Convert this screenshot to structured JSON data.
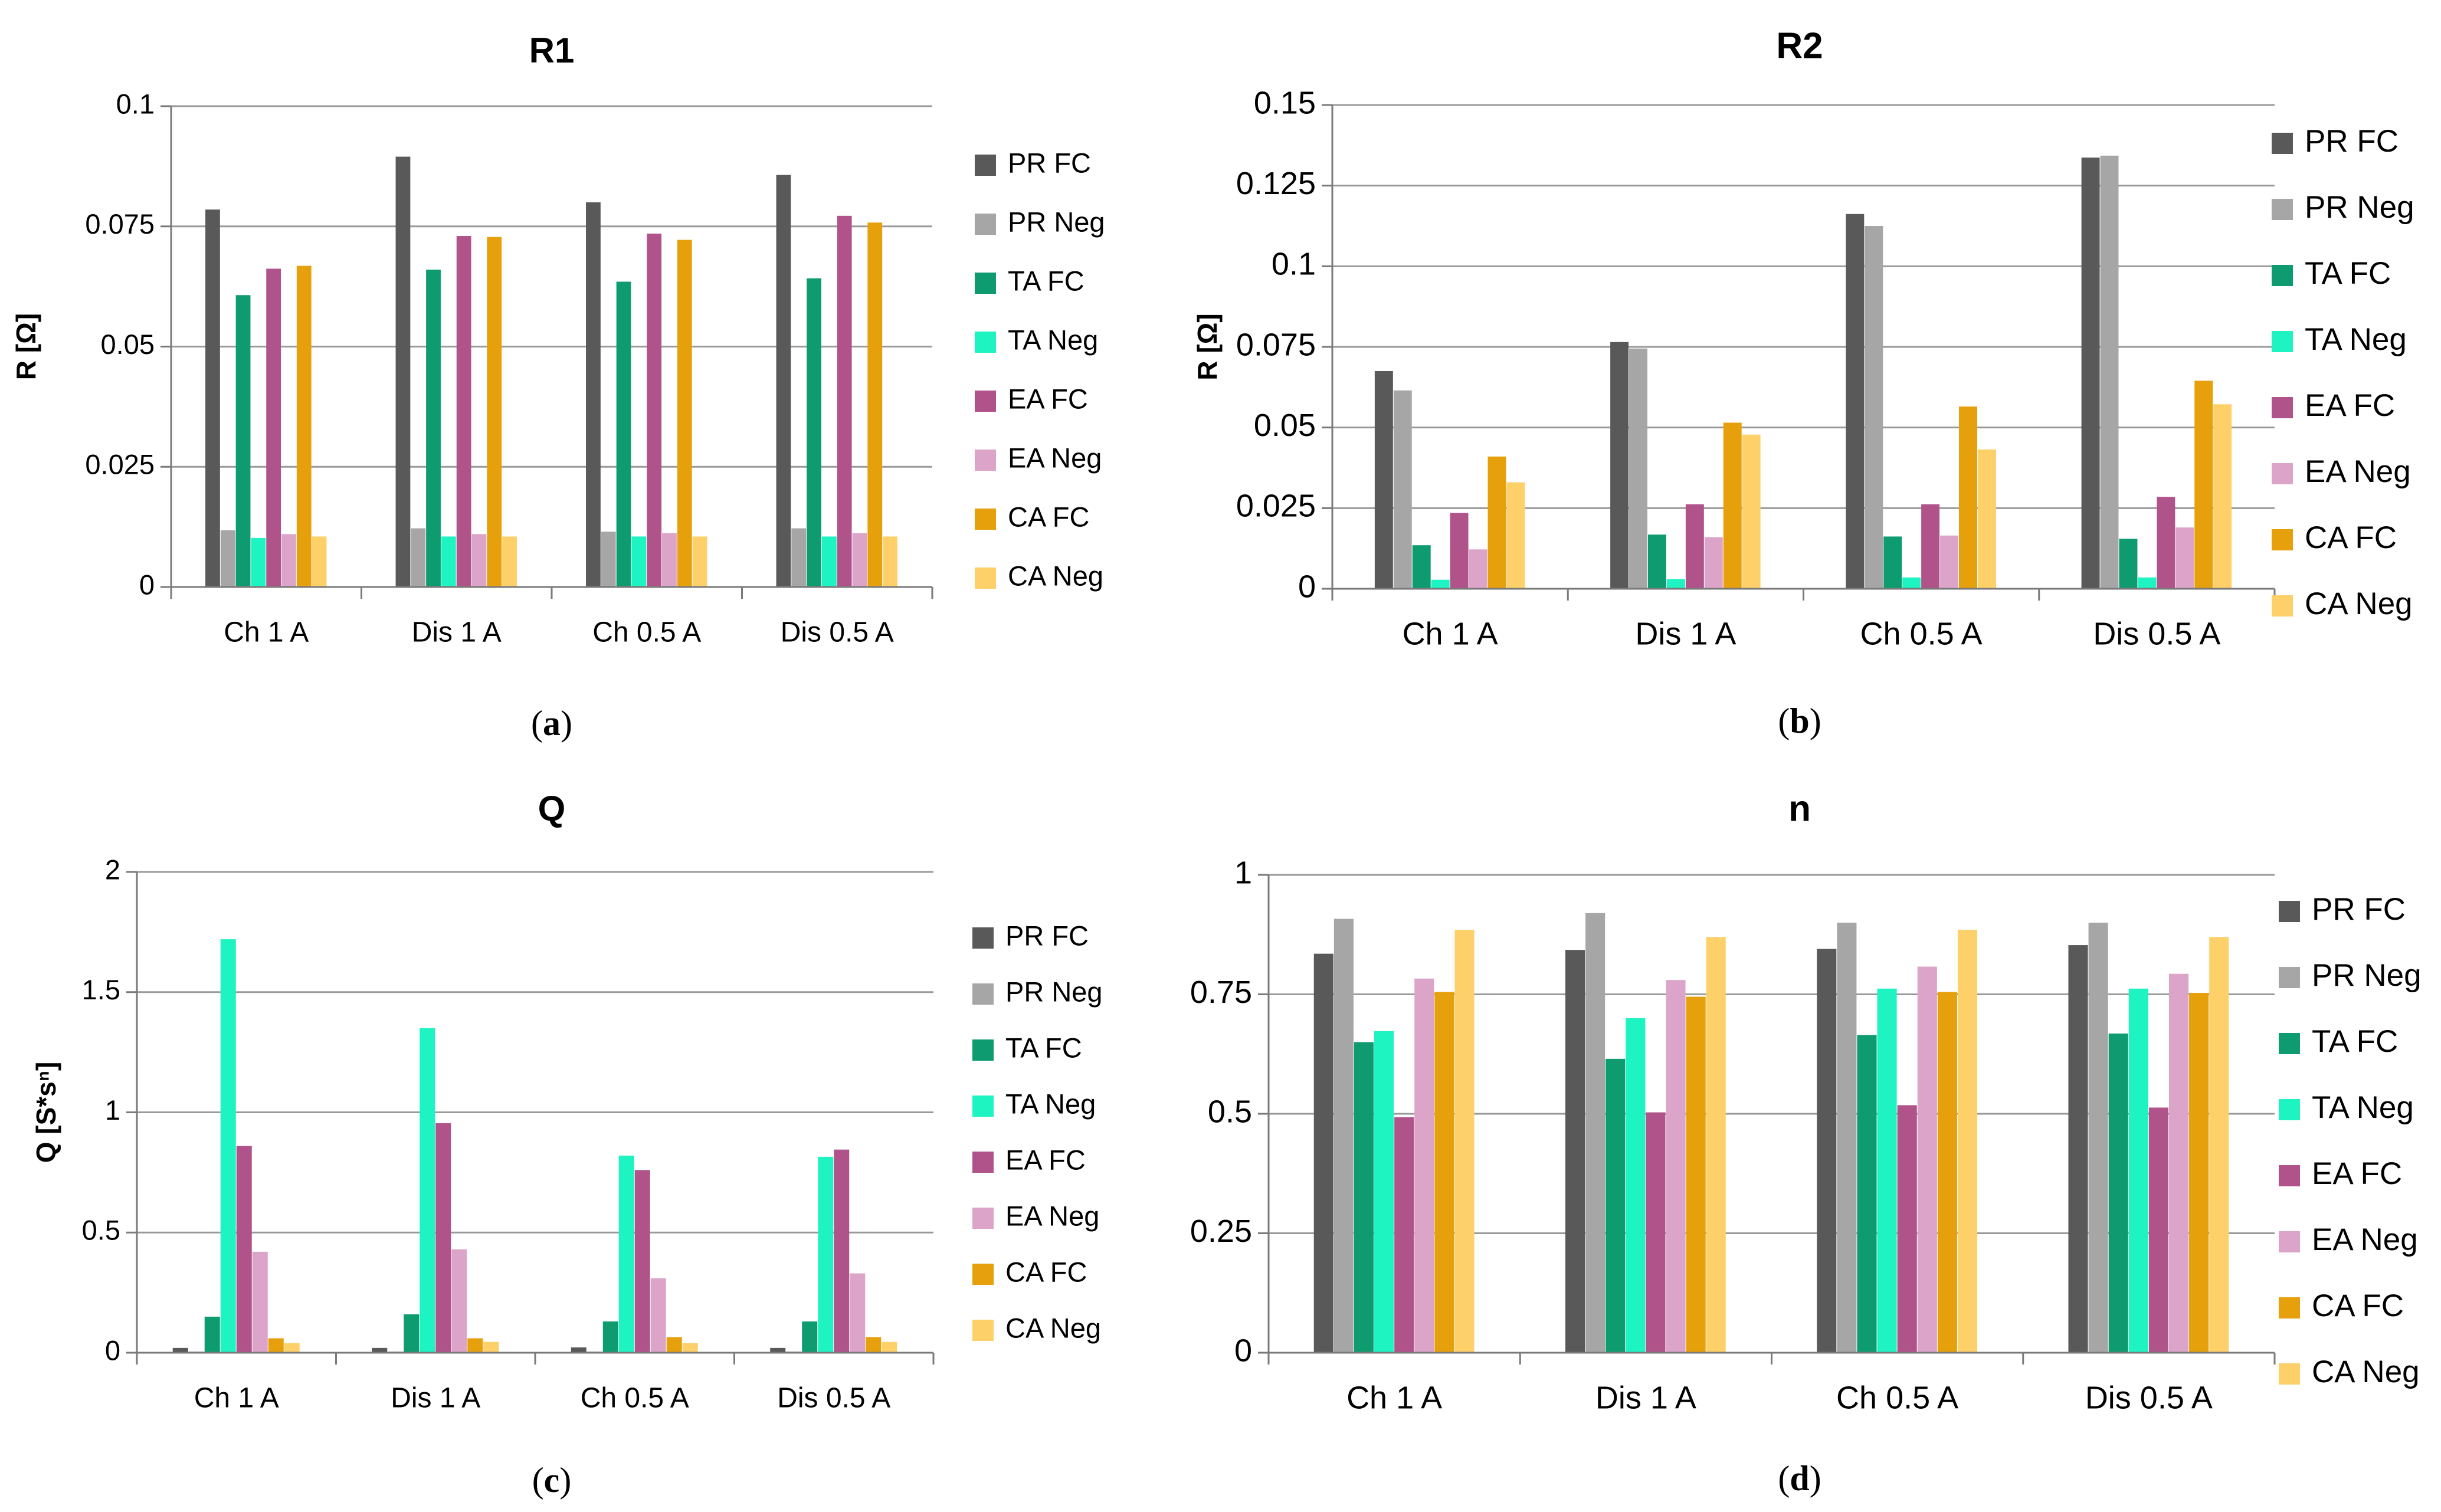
{
  "series_names": [
    "PR FC",
    "PR Neg",
    "TA FC",
    "TA Neg",
    "EA FC",
    "EA Neg",
    "CA FC",
    "CA Neg"
  ],
  "colors": [
    "#595959",
    "#a6a6a6",
    "#0e9b6f",
    "#1ef4c2",
    "#b1538b",
    "#dca4c8",
    "#e6a00c",
    "#fdd06a"
  ],
  "chart_data": [
    {
      "type": "bar",
      "panel": "a",
      "caption": "(a)",
      "title": "R1",
      "xlabel": "",
      "ylabel": "R [Ω]",
      "categories": [
        "Ch 1 A",
        "Dis 1 A",
        "Ch 0.5 A",
        "Dis 0.5 A"
      ],
      "ylim": [
        0,
        0.1
      ],
      "yticks": [
        0,
        0.025,
        0.05,
        0.075,
        0.1
      ],
      "ytick_labels": [
        "0",
        "0.025",
        "0.05",
        "0.075",
        "0.1"
      ],
      "legend_position": "right",
      "series": [
        {
          "name": "PR FC",
          "values": [
            0.0785,
            0.0895,
            0.08,
            0.0857
          ]
        },
        {
          "name": "PR Neg",
          "values": [
            0.0118,
            0.0122,
            0.0115,
            0.0122
          ]
        },
        {
          "name": "TA FC",
          "values": [
            0.0607,
            0.066,
            0.0635,
            0.0642
          ]
        },
        {
          "name": "TA Neg",
          "values": [
            0.0102,
            0.0105,
            0.0105,
            0.0105
          ]
        },
        {
          "name": "EA FC",
          "values": [
            0.0662,
            0.073,
            0.0735,
            0.0772
          ]
        },
        {
          "name": "EA Neg",
          "values": [
            0.011,
            0.011,
            0.0112,
            0.0112
          ]
        },
        {
          "name": "CA FC",
          "values": [
            0.0668,
            0.0728,
            0.0722,
            0.0758
          ]
        },
        {
          "name": "CA Neg",
          "values": [
            0.0105,
            0.0105,
            0.0105,
            0.0105
          ]
        }
      ]
    },
    {
      "type": "bar",
      "panel": "b",
      "caption": "(b)",
      "title": "R2",
      "xlabel": "",
      "ylabel": "R [Ω]",
      "categories": [
        "Ch 1 A",
        "Dis 1 A",
        "Ch 0.5 A",
        "Dis 0.5 A"
      ],
      "ylim": [
        0,
        0.15
      ],
      "yticks": [
        0,
        0.025,
        0.05,
        0.075,
        0.1,
        0.125,
        0.15
      ],
      "ytick_labels": [
        "0",
        "0.025",
        "0.05",
        "0.075",
        "0.1",
        "0.125",
        "0.15"
      ],
      "legend_position": "right",
      "series": [
        {
          "name": "PR FC",
          "values": [
            0.0675,
            0.0765,
            0.1162,
            0.1337
          ]
        },
        {
          "name": "PR Neg",
          "values": [
            0.0615,
            0.0745,
            0.1125,
            0.1343
          ]
        },
        {
          "name": "TA FC",
          "values": [
            0.0135,
            0.0168,
            0.0162,
            0.0155
          ]
        },
        {
          "name": "TA Neg",
          "values": [
            0.0028,
            0.003,
            0.0035,
            0.0035
          ]
        },
        {
          "name": "EA FC",
          "values": [
            0.0235,
            0.0262,
            0.0262,
            0.0285
          ]
        },
        {
          "name": "EA Neg",
          "values": [
            0.0122,
            0.016,
            0.0165,
            0.019
          ]
        },
        {
          "name": "CA FC",
          "values": [
            0.041,
            0.0515,
            0.0565,
            0.0645
          ]
        },
        {
          "name": "CA Neg",
          "values": [
            0.033,
            0.0478,
            0.0432,
            0.0572
          ]
        }
      ]
    },
    {
      "type": "bar",
      "panel": "c",
      "caption": "(c)",
      "title": "Q",
      "xlabel": "",
      "ylabel": "Q [S*sⁿ]",
      "categories": [
        "Ch 1 A",
        "Dis 1 A",
        "Ch 0.5 A",
        "Dis 0.5 A"
      ],
      "ylim": [
        0,
        2
      ],
      "yticks": [
        0,
        0.5,
        1,
        1.5,
        2
      ],
      "ytick_labels": [
        "0",
        "0.5",
        "1",
        "1.5",
        "2"
      ],
      "legend_position": "right",
      "series": [
        {
          "name": "PR FC",
          "values": [
            0.02,
            0.02,
            0.022,
            0.02
          ]
        },
        {
          "name": "PR Neg",
          "values": [
            0.005,
            0.005,
            0.005,
            0.005
          ]
        },
        {
          "name": "TA FC",
          "values": [
            0.15,
            0.16,
            0.13,
            0.13
          ]
        },
        {
          "name": "TA Neg",
          "values": [
            1.72,
            1.35,
            0.82,
            0.815
          ]
        },
        {
          "name": "EA FC",
          "values": [
            0.86,
            0.955,
            0.76,
            0.845
          ]
        },
        {
          "name": "EA Neg",
          "values": [
            0.42,
            0.43,
            0.31,
            0.33
          ]
        },
        {
          "name": "CA FC",
          "values": [
            0.06,
            0.06,
            0.065,
            0.065
          ]
        },
        {
          "name": "CA Neg",
          "values": [
            0.04,
            0.045,
            0.04,
            0.045
          ]
        }
      ]
    },
    {
      "type": "bar",
      "panel": "d",
      "caption": "(d)",
      "title": "n",
      "xlabel": "",
      "ylabel": "",
      "categories": [
        "Ch 1 A",
        "Dis 1 A",
        "Ch 0.5 A",
        "Dis 0.5 A"
      ],
      "ylim": [
        0,
        1
      ],
      "yticks": [
        0,
        0.25,
        0.5,
        0.75,
        1
      ],
      "ytick_labels": [
        "0",
        "0.25",
        "0.5",
        "0.75",
        "1"
      ],
      "legend_position": "right",
      "series": [
        {
          "name": "PR FC",
          "values": [
            0.835,
            0.843,
            0.845,
            0.853
          ]
        },
        {
          "name": "PR Neg",
          "values": [
            0.908,
            0.92,
            0.9,
            0.9
          ]
        },
        {
          "name": "TA FC",
          "values": [
            0.65,
            0.615,
            0.665,
            0.668
          ]
        },
        {
          "name": "TA Neg",
          "values": [
            0.673,
            0.7,
            0.762,
            0.762
          ]
        },
        {
          "name": "EA FC",
          "values": [
            0.493,
            0.503,
            0.518,
            0.513
          ]
        },
        {
          "name": "EA Neg",
          "values": [
            0.783,
            0.78,
            0.808,
            0.793
          ]
        },
        {
          "name": "CA FC",
          "values": [
            0.755,
            0.745,
            0.755,
            0.753
          ]
        },
        {
          "name": "CA Neg",
          "values": [
            0.885,
            0.87,
            0.885,
            0.87
          ]
        }
      ]
    }
  ]
}
